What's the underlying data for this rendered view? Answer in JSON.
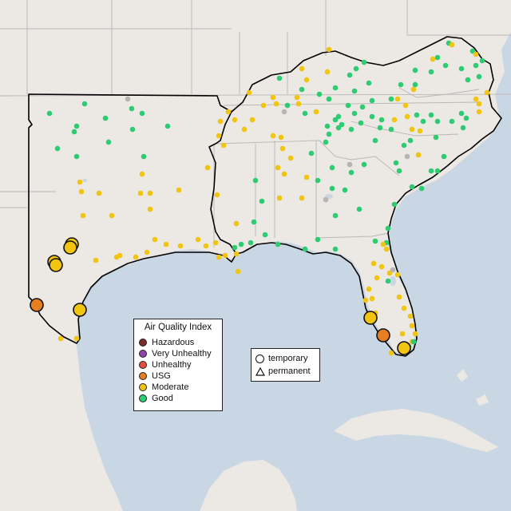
{
  "map": {
    "colors": {
      "water": "#c9d6e3",
      "land": "#ece8e3",
      "border": "#b8b8b8",
      "region_outline": "#000000",
      "hazardous": "#7b2a2a",
      "very_unhealthy": "#8e44ad",
      "unhealthy": "#e74c3c",
      "usg": "#e67e22",
      "moderate": "#f1c40f",
      "good": "#2ecc71",
      "missing": "#b5b5b5"
    }
  },
  "legend_aqi": {
    "title": "Air Quality Index",
    "items": [
      {
        "label": "Hazardous",
        "color": "#7b2a2a"
      },
      {
        "label": "Very Unhealthy",
        "color": "#8e44ad"
      },
      {
        "label": "Unhealthy",
        "color": "#e74c3c"
      },
      {
        "label": "USG",
        "color": "#e67e22"
      },
      {
        "label": "Moderate",
        "color": "#f1c40f"
      },
      {
        "label": "Good",
        "color": "#2ecc71"
      }
    ]
  },
  "legend_type": {
    "items": [
      {
        "label": "temporary",
        "shape": "circle-icon"
      },
      {
        "label": "permanent",
        "shape": "triangle-icon"
      }
    ]
  }
}
